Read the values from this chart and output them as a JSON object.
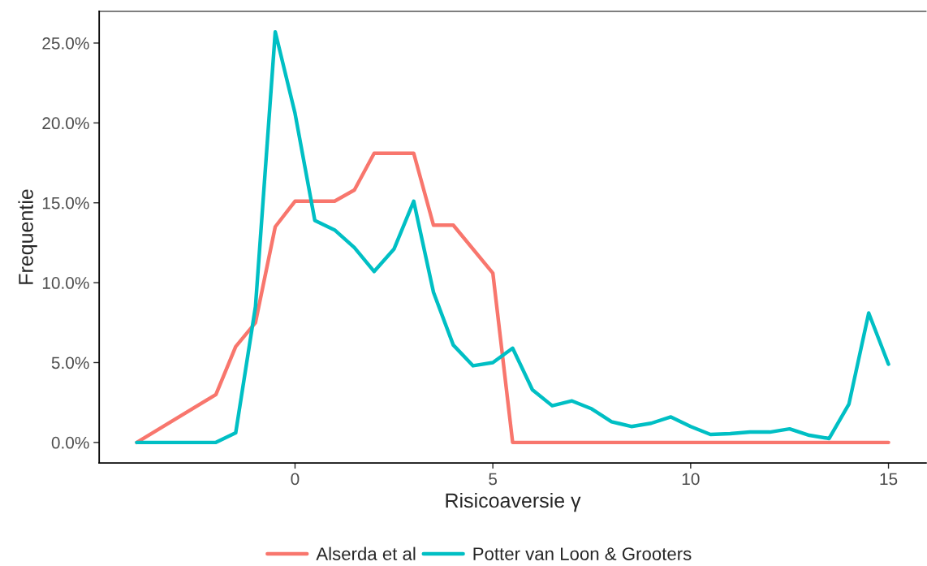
{
  "chart_data": {
    "type": "line",
    "xlabel": "Risicoaversie γ",
    "ylabel": "Frequentie",
    "xlim": [
      -4.95,
      15.95
    ],
    "xticks": [
      0,
      5,
      10,
      15
    ],
    "ylim": [
      -1.285,
      26.985
    ],
    "yticks": [
      {
        "value": 0,
        "label": "0.0%"
      },
      {
        "value": 5,
        "label": "5.0%"
      },
      {
        "value": 10,
        "label": "10.0%"
      },
      {
        "value": 15,
        "label": "15.0%"
      },
      {
        "value": 20,
        "label": "20.0%"
      },
      {
        "value": 25,
        "label": "25.0%"
      }
    ],
    "grid": false,
    "legend": "bottom",
    "marker": "none",
    "line_style": "solid",
    "series": [
      {
        "name": "Alserda et al",
        "color": "#f8766d",
        "x": [
          -4,
          -2,
          -1.5,
          -1,
          -0.5,
          0,
          1,
          1.5,
          2,
          3,
          3.5,
          4,
          5,
          5.5,
          15
        ],
        "values": [
          0,
          3.0,
          6.0,
          7.5,
          13.5,
          15.1,
          15.1,
          15.8,
          18.1,
          18.1,
          13.6,
          13.6,
          10.6,
          0,
          0
        ]
      },
      {
        "name": "Potter van Loon & Grooters",
        "color": "#00bfc4",
        "x": [
          -4,
          -2,
          -1.5,
          -1,
          -0.5,
          0,
          0.5,
          1,
          1.5,
          2,
          2.5,
          3,
          3.5,
          4,
          4.5,
          5,
          5.5,
          6,
          6.5,
          7,
          7.5,
          8,
          8.5,
          9,
          9.5,
          10,
          10.5,
          11,
          11.5,
          12,
          12.5,
          13,
          13.5,
          14,
          14.5,
          15
        ],
        "values": [
          0,
          0,
          0.6,
          8.5,
          25.7,
          20.6,
          13.9,
          13.3,
          12.2,
          10.7,
          12.1,
          15.1,
          9.4,
          6.1,
          4.8,
          5.0,
          5.9,
          3.3,
          2.3,
          2.6,
          2.1,
          1.3,
          1.0,
          1.2,
          1.6,
          1.0,
          0.5,
          0.55,
          0.65,
          0.65,
          0.85,
          0.45,
          0.25,
          2.4,
          8.1,
          4.9
        ]
      }
    ]
  }
}
